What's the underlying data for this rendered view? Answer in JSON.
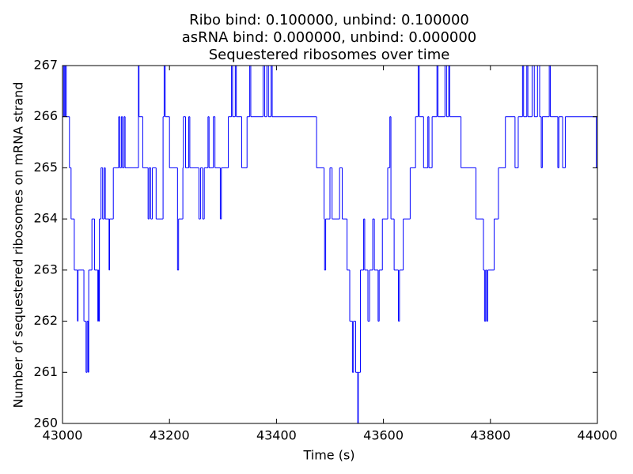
{
  "chart_data": {
    "type": "step",
    "title": [
      "Ribo bind: 0.100000, unbind: 0.100000",
      "asRNA bind: 0.000000, unbind: 0.000000",
      "Sequestered ribosomes over time"
    ],
    "x_label": "Time (s)",
    "y_label": "Number of sequestered ribosomes on mRNA strand",
    "xlim": [
      43000,
      44000
    ],
    "xticks": [
      43000,
      43200,
      43400,
      43600,
      43800,
      44000
    ],
    "ylim": [
      260,
      267
    ],
    "yticks": [
      260,
      261,
      262,
      263,
      264,
      265,
      266,
      267
    ],
    "color": "#0000ff",
    "x": [
      43000,
      43002,
      43004,
      43005,
      43007,
      43013,
      43016,
      43022,
      43028,
      43029,
      43040,
      43044,
      43046,
      43048,
      43049,
      43055,
      43060,
      43066,
      43067,
      43068,
      43069,
      43072,
      43075,
      43078,
      43080,
      43087,
      43088,
      43095,
      43105,
      43107,
      43110,
      43112,
      43115,
      43117,
      43142,
      43143,
      43150,
      43160,
      43162,
      43165,
      43168,
      43175,
      43188,
      43190,
      43192,
      43200,
      43215,
      43217,
      43225,
      43226,
      43230,
      43236,
      43238,
      43255,
      43258,
      43262,
      43265,
      43272,
      43274,
      43282,
      43285,
      43295,
      43297,
      43310,
      43316,
      43318,
      43323,
      43325,
      43335,
      43345,
      43350,
      43352,
      43375,
      43378,
      43382,
      43385,
      43390,
      43392,
      43475,
      43489,
      43490,
      43492,
      43500,
      43504,
      43518,
      43523,
      43532,
      43537,
      43542,
      43544,
      43548,
      43552,
      43553,
      43557,
      43563,
      43565,
      43571,
      43574,
      43580,
      43583,
      43590,
      43592,
      43598,
      43608,
      43612,
      43614,
      43620,
      43628,
      43630,
      43637,
      43650,
      43660,
      43665,
      43667,
      43675,
      43683,
      43685,
      43691,
      43700,
      43702,
      43715,
      43718,
      43722,
      43724,
      43745,
      43773,
      43787,
      43789,
      43791,
      43793,
      43795,
      43807,
      43815,
      43828,
      43846,
      43852,
      43860,
      43862,
      43868,
      43870,
      43878,
      43882,
      43888,
      43892,
      43895,
      43897,
      43910,
      43912,
      43926,
      43928,
      43935,
      43940,
      43998
    ],
    "y": [
      266,
      267,
      266,
      267,
      266,
      265,
      264,
      263,
      262,
      263,
      262,
      261,
      262,
      261,
      263,
      264,
      263,
      262,
      263,
      262,
      264,
      265,
      264,
      265,
      264,
      263,
      264,
      265,
      266,
      265,
      266,
      265,
      266,
      265,
      267,
      266,
      265,
      264,
      265,
      264,
      265,
      264,
      266,
      267,
      266,
      265,
      263,
      264,
      265,
      266,
      265,
      266,
      265,
      264,
      265,
      264,
      265,
      266,
      265,
      266,
      265,
      264,
      265,
      266,
      267,
      266,
      267,
      266,
      265,
      266,
      267,
      266,
      267,
      266,
      267,
      266,
      267,
      266,
      265,
      264,
      263,
      264,
      265,
      264,
      265,
      264,
      263,
      262,
      261,
      262,
      261,
      260,
      261,
      263,
      264,
      263,
      262,
      263,
      264,
      263,
      262,
      263,
      264,
      265,
      266,
      264,
      263,
      262,
      263,
      264,
      265,
      266,
      267,
      266,
      265,
      266,
      265,
      266,
      267,
      266,
      267,
      266,
      267,
      266,
      265,
      264,
      263,
      262,
      263,
      262,
      263,
      264,
      265,
      266,
      265,
      266,
      267,
      266,
      267,
      266,
      267,
      266,
      267,
      266,
      265,
      266,
      267,
      266,
      265,
      266,
      265,
      266,
      265
    ]
  }
}
